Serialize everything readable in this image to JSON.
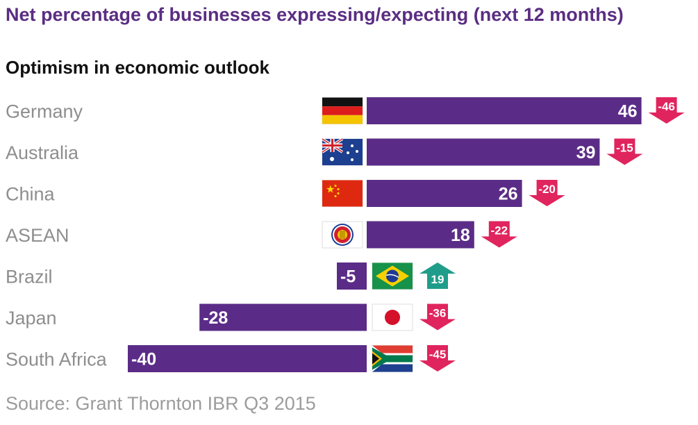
{
  "title": "Net percentage of businesses expressing/expecting (next 12 months)",
  "source": "Source: Grant Thornton IBR Q3 2015",
  "colors": {
    "bar": "#5b2c87",
    "decrease": "#e0245e",
    "increase": "#1f9d8a",
    "title": "#5a2d82"
  },
  "chart_data": {
    "type": "bar",
    "orientation": "horizontal",
    "title": "Optimism in economic outlook",
    "xlabel": "",
    "ylabel": "",
    "categories": [
      "Germany",
      "Australia",
      "China",
      "ASEAN",
      "Brazil",
      "Japan",
      "South Africa"
    ],
    "values": [
      46,
      39,
      26,
      18,
      -5,
      -28,
      -40
    ],
    "change_labels": [
      "-46",
      "-15",
      "-20",
      "-22",
      "19",
      "-36",
      "-45"
    ],
    "change_direction": [
      "down",
      "down",
      "down",
      "down",
      "up",
      "down",
      "down"
    ],
    "flags": [
      "germany-flag",
      "australia-flag",
      "china-flag",
      "asean-flag",
      "brazil-flag",
      "japan-flag",
      "south-africa-flag"
    ],
    "grid": false,
    "legend": "none"
  }
}
